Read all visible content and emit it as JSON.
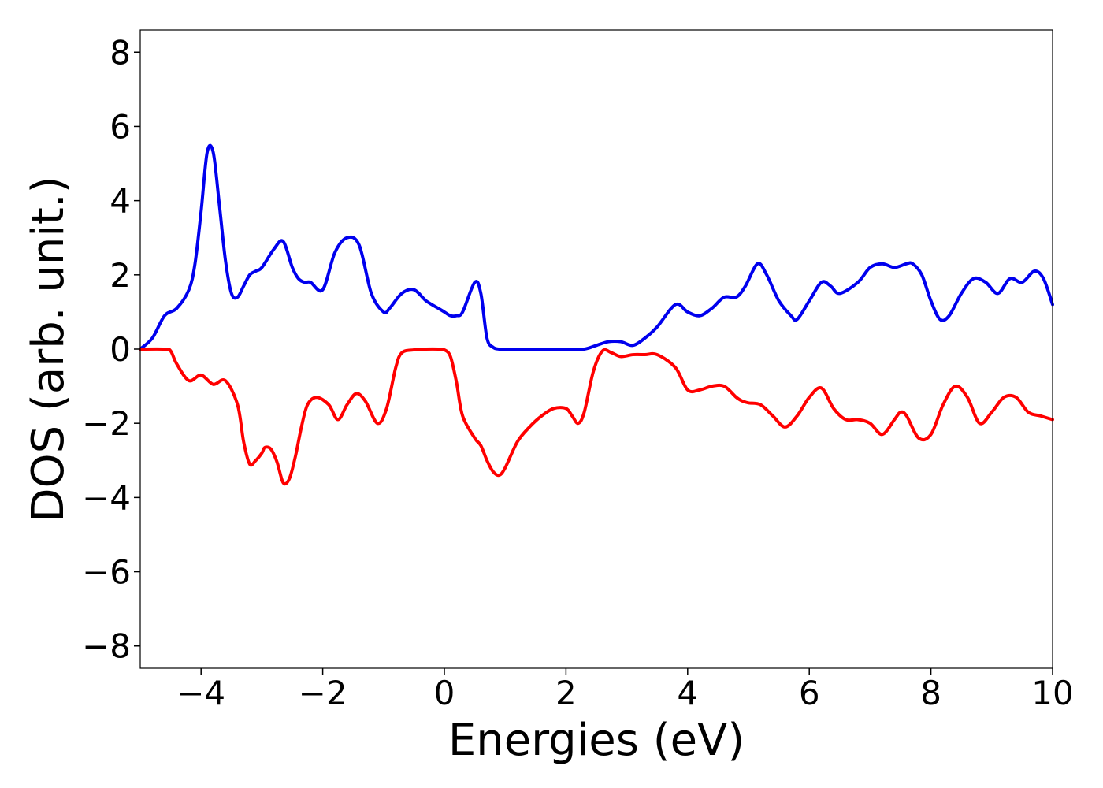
{
  "chart_data": {
    "type": "line",
    "title": "",
    "xlabel": "Energies (eV)",
    "ylabel": "DOS (arb. unit.)",
    "xlim": [
      -5,
      10
    ],
    "ylim": [
      -8.6,
      8.6
    ],
    "xticks": [
      -4,
      -2,
      0,
      2,
      4,
      6,
      8,
      10
    ],
    "xtick_labels": [
      "−4",
      "−2",
      "0",
      "2",
      "4",
      "6",
      "8",
      "10"
    ],
    "yticks": [
      8,
      6,
      4,
      2,
      0,
      -2,
      -4,
      -6,
      -8
    ],
    "ytick_labels": [
      "8",
      "6",
      "4",
      "2",
      "0",
      "−2",
      "−4",
      "−6",
      "−8"
    ],
    "grid": false,
    "legend": "none",
    "series": [
      {
        "color": "#0000ee",
        "x": [
          -5.0,
          -4.8,
          -4.6,
          -4.4,
          -4.2,
          -4.1,
          -4.0,
          -3.9,
          -3.8,
          -3.7,
          -3.6,
          -3.5,
          -3.4,
          -3.3,
          -3.2,
          -3.1,
          -3.0,
          -2.8,
          -2.65,
          -2.5,
          -2.4,
          -2.3,
          -2.2,
          -2.0,
          -1.8,
          -1.6,
          -1.4,
          -1.2,
          -1.0,
          -0.9,
          -0.7,
          -0.5,
          -0.3,
          -0.1,
          0.0,
          0.1,
          0.2,
          0.3,
          0.5,
          0.6,
          0.7,
          0.8,
          0.9,
          1.0,
          1.5,
          2.0,
          2.3,
          2.5,
          2.7,
          2.9,
          3.1,
          3.3,
          3.5,
          3.8,
          4.0,
          4.2,
          4.4,
          4.6,
          4.8,
          4.95,
          5.15,
          5.3,
          5.5,
          5.7,
          5.8,
          6.0,
          6.2,
          6.35,
          6.5,
          6.8,
          7.0,
          7.2,
          7.4,
          7.6,
          7.7,
          7.85,
          8.0,
          8.15,
          8.3,
          8.5,
          8.7,
          8.9,
          9.1,
          9.3,
          9.5,
          9.7,
          9.85,
          10.0
        ],
        "y": [
          0.0,
          0.3,
          0.9,
          1.1,
          1.6,
          2.3,
          3.7,
          5.3,
          5.3,
          3.9,
          2.4,
          1.5,
          1.4,
          1.7,
          2.0,
          2.1,
          2.2,
          2.7,
          2.9,
          2.2,
          1.9,
          1.8,
          1.8,
          1.6,
          2.6,
          3.0,
          2.8,
          1.5,
          1.0,
          1.1,
          1.5,
          1.6,
          1.3,
          1.1,
          1.0,
          0.9,
          0.9,
          1.0,
          1.8,
          1.5,
          0.3,
          0.05,
          0.0,
          0.0,
          0.0,
          0.0,
          0.0,
          0.1,
          0.2,
          0.2,
          0.1,
          0.3,
          0.6,
          1.2,
          1.0,
          0.9,
          1.1,
          1.4,
          1.4,
          1.7,
          2.3,
          2.0,
          1.3,
          0.9,
          0.8,
          1.3,
          1.8,
          1.7,
          1.5,
          1.8,
          2.2,
          2.3,
          2.2,
          2.3,
          2.3,
          2.0,
          1.3,
          0.8,
          0.9,
          1.5,
          1.9,
          1.8,
          1.5,
          1.9,
          1.8,
          2.1,
          1.9,
          1.2
        ]
      },
      {
        "color": "#ff0000",
        "x": [
          -5.0,
          -4.6,
          -4.5,
          -4.4,
          -4.2,
          -4.0,
          -3.8,
          -3.6,
          -3.4,
          -3.3,
          -3.2,
          -3.1,
          -3.0,
          -2.95,
          -2.85,
          -2.75,
          -2.65,
          -2.55,
          -2.45,
          -2.35,
          -2.25,
          -2.1,
          -1.9,
          -1.75,
          -1.6,
          -1.45,
          -1.3,
          -1.1,
          -0.95,
          -0.8,
          -0.7,
          -0.5,
          -0.3,
          -0.1,
          0.0,
          0.1,
          0.2,
          0.3,
          0.5,
          0.6,
          0.7,
          0.8,
          0.9,
          1.0,
          1.2,
          1.4,
          1.6,
          1.8,
          2.0,
          2.1,
          2.2,
          2.3,
          2.45,
          2.6,
          2.75,
          2.9,
          3.1,
          3.3,
          3.5,
          3.8,
          4.0,
          4.2,
          4.4,
          4.6,
          4.8,
          4.9,
          5.0,
          5.2,
          5.4,
          5.6,
          5.8,
          6.0,
          6.2,
          6.4,
          6.6,
          6.8,
          7.0,
          7.2,
          7.4,
          7.5,
          7.6,
          7.8,
          8.0,
          8.2,
          8.4,
          8.6,
          8.8,
          9.0,
          9.2,
          9.4,
          9.6,
          9.8,
          10.0
        ],
        "y": [
          0.0,
          0.0,
          -0.05,
          -0.4,
          -0.85,
          -0.7,
          -0.95,
          -0.85,
          -1.5,
          -2.5,
          -3.1,
          -3.0,
          -2.8,
          -2.65,
          -2.7,
          -3.05,
          -3.6,
          -3.5,
          -2.9,
          -2.1,
          -1.5,
          -1.3,
          -1.5,
          -1.9,
          -1.5,
          -1.2,
          -1.4,
          -2.0,
          -1.6,
          -0.5,
          -0.1,
          -0.02,
          0.0,
          0.0,
          -0.02,
          -0.2,
          -0.9,
          -1.8,
          -2.4,
          -2.6,
          -3.0,
          -3.3,
          -3.4,
          -3.2,
          -2.5,
          -2.1,
          -1.8,
          -1.6,
          -1.6,
          -1.8,
          -2.0,
          -1.7,
          -0.6,
          -0.05,
          -0.1,
          -0.2,
          -0.15,
          -0.15,
          -0.15,
          -0.5,
          -1.1,
          -1.1,
          -1.0,
          -1.0,
          -1.3,
          -1.4,
          -1.45,
          -1.5,
          -1.8,
          -2.1,
          -1.8,
          -1.3,
          -1.05,
          -1.6,
          -1.9,
          -1.9,
          -2.0,
          -2.3,
          -1.9,
          -1.7,
          -1.8,
          -2.4,
          -2.3,
          -1.5,
          -1.0,
          -1.3,
          -2.0,
          -1.7,
          -1.3,
          -1.3,
          -1.7,
          -1.8,
          -1.9
        ]
      }
    ]
  }
}
